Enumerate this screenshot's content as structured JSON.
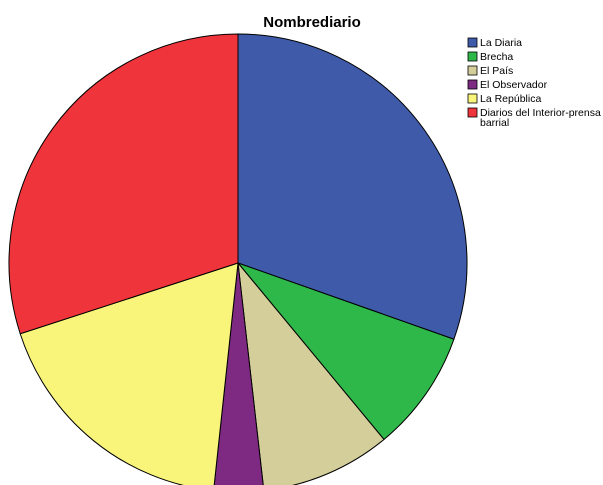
{
  "chart_data": {
    "type": "pie",
    "title": "Nombrediario",
    "categories": [
      "La Diaria",
      "Brecha",
      "El País",
      "El Observador",
      "La República",
      "Diarios del Interior-prensa barrial"
    ],
    "legend_lines": [
      [
        "La Diaria"
      ],
      [
        "Brecha"
      ],
      [
        "El País"
      ],
      [
        "El Observador"
      ],
      [
        "La República"
      ],
      [
        "Diarios del Interior-prensa",
        "barrial"
      ]
    ],
    "values": [
      30.4,
      8.6,
      9.2,
      3.5,
      18.3,
      30.0
    ],
    "colors": [
      "#3f5aa9",
      "#2eb84a",
      "#d4cf9a",
      "#7e2a82",
      "#f8f57a",
      "#f0343b"
    ],
    "legend_position": "top-right"
  }
}
